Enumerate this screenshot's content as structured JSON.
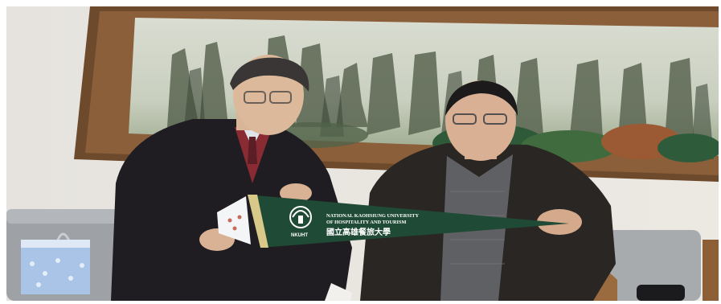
{
  "pennant": {
    "logo_text": "NKUHT",
    "line1": "NATIONAL KAOHSIUNG UNIVERSITY",
    "line2": "OF HOSPITALITY AND TOURISM",
    "line3": "國立高雄餐旅大學"
  },
  "colors": {
    "wall": "#e9e4dd",
    "frame": "#6e4a2c",
    "pennant": "#1f4a35",
    "pennant_trim": "#d8c98a",
    "bag": "#a9c4e6"
  }
}
